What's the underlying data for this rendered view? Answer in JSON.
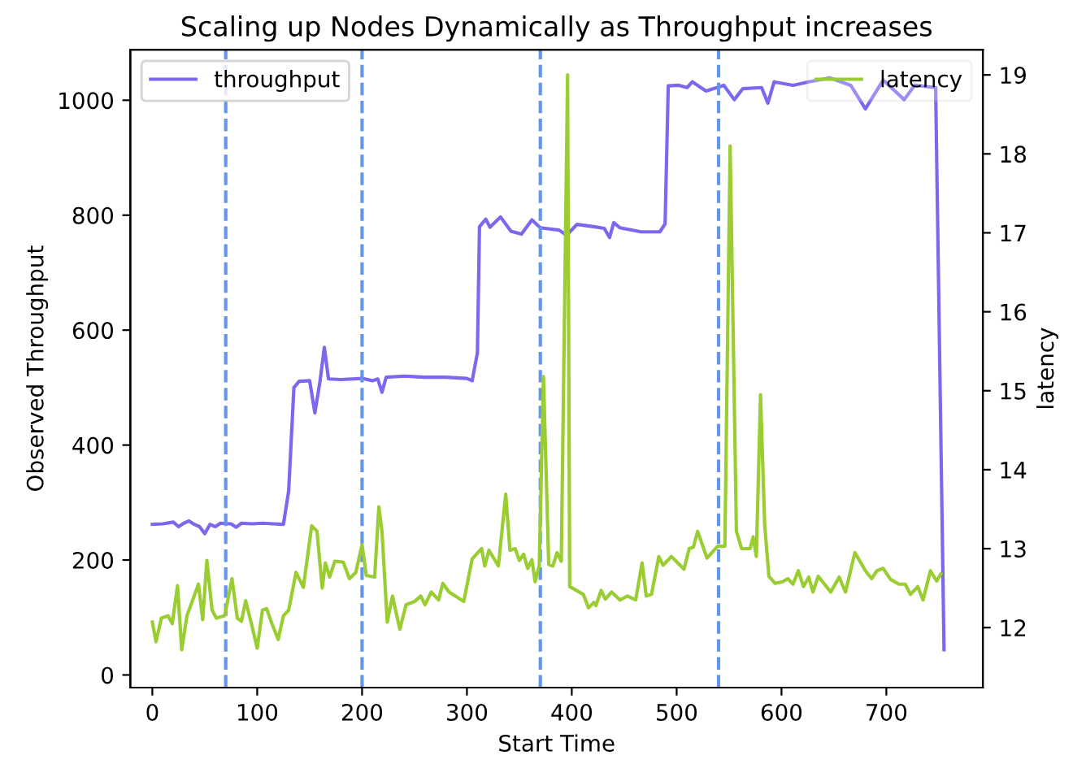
{
  "chart_data": {
    "type": "line",
    "title": "Scaling up Nodes Dynamically as Throughput increases",
    "xlabel": "Start Time",
    "ylabel": "Observed Throughput",
    "y2label": "latency",
    "xlim": [
      -21,
      792
    ],
    "xticks": [
      0,
      100,
      200,
      300,
      400,
      500,
      600,
      700
    ],
    "ylim": [
      -22,
      1088
    ],
    "yticks": [
      0,
      200,
      400,
      600,
      800,
      1000
    ],
    "y2lim": [
      11.24,
      19.32
    ],
    "y2ticks": [
      12,
      13,
      14,
      15,
      16,
      17,
      18,
      19
    ],
    "grid": false,
    "legend": "top",
    "line_style": "solid",
    "marker": "none",
    "ref_lines": [
      {
        "axis": "x",
        "value": 70,
        "color": "#6495ed",
        "line_style": "dashed"
      },
      {
        "axis": "x",
        "value": 200,
        "color": "#6495ed",
        "line_style": "dashed"
      },
      {
        "axis": "x",
        "value": 370,
        "color": "#6495ed",
        "line_style": "dashed"
      },
      {
        "axis": "x",
        "value": 540,
        "color": "#6495ed",
        "line_style": "dashed"
      }
    ],
    "series": [
      {
        "name": "throughput",
        "color": "#7b68ee",
        "axis": "y",
        "x": [
          0,
          10,
          20,
          25,
          30,
          35,
          40,
          45,
          50,
          55,
          60,
          65,
          75,
          80,
          85,
          95,
          105,
          115,
          125,
          130,
          135,
          140,
          150,
          155,
          160,
          164,
          168,
          180,
          200,
          210,
          215,
          219,
          223,
          240,
          260,
          280,
          300,
          305,
          310,
          312,
          318,
          322,
          332,
          342,
          352,
          362,
          370,
          388,
          395,
          405,
          421,
          431,
          436,
          440,
          446,
          466,
          484,
          489,
          492,
          502,
          510,
          515,
          528,
          545,
          555,
          563,
          581,
          587,
          593,
          611,
          626,
          646,
          666,
          680,
          697,
          717,
          727,
          747,
          755
        ],
        "values": [
          262,
          263,
          266,
          258,
          264,
          268,
          262,
          258,
          246,
          262,
          258,
          264,
          263,
          257,
          264,
          263,
          264,
          263,
          262,
          320,
          500,
          511,
          512,
          456,
          512,
          570,
          515,
          514,
          516,
          512,
          515,
          492,
          518,
          520,
          518,
          518,
          516,
          512,
          560,
          780,
          793,
          779,
          797,
          772,
          767,
          792,
          778,
          774,
          765,
          784,
          780,
          777,
          761,
          787,
          778,
          771,
          771,
          785,
          1025,
          1026,
          1022,
          1032,
          1016,
          1026,
          1001,
          1020,
          1022,
          995,
          1032,
          1026,
          1032,
          1039,
          1026,
          985,
          1035,
          1001,
          1026,
          1022,
          44
        ]
      },
      {
        "name": "latency",
        "color": "#9acd32",
        "axis": "y2",
        "x": [
          0,
          3.5,
          8.6,
          15,
          19,
          24,
          28,
          33,
          44,
          48,
          52,
          57,
          61,
          69,
          76,
          81,
          85,
          89,
          95,
          100,
          105,
          109,
          114,
          120,
          125,
          130,
          137,
          144,
          152,
          157,
          162,
          165,
          169,
          174,
          182,
          188,
          194,
          200,
          204,
          212,
          216,
          219,
          224,
          229,
          236,
          242,
          250,
          256,
          260,
          266,
          273,
          277,
          283,
          297,
          305,
          314,
          317,
          321,
          330,
          337,
          341,
          346,
          350,
          354,
          358,
          362,
          365,
          369,
          373,
          378,
          382,
          386,
          390,
          396,
          398,
          411,
          416,
          421,
          423,
          428,
          432,
          438,
          446,
          453,
          461,
          467,
          471,
          476,
          483,
          487,
          495,
          507,
          512,
          516,
          520,
          529,
          539,
          546,
          551,
          557,
          562,
          570,
          573,
          576,
          580,
          584,
          588,
          594,
          601,
          606,
          611,
          616,
          621,
          626,
          630,
          635,
          641,
          647,
          655,
          661,
          670,
          680,
          686,
          691,
          697,
          704,
          712,
          718,
          723,
          730,
          735,
          742,
          748,
          752
        ],
        "values": [
          12.07,
          11.82,
          12.12,
          12.15,
          12.05,
          12.53,
          11.72,
          12.15,
          12.55,
          12.1,
          12.85,
          12.22,
          12.12,
          12.15,
          12.62,
          12.12,
          12.08,
          12.34,
          12.02,
          11.74,
          12.22,
          12.24,
          12.05,
          11.85,
          12.15,
          12.22,
          12.7,
          12.51,
          13.29,
          13.22,
          12.5,
          12.82,
          12.64,
          12.84,
          12.83,
          12.62,
          12.7,
          13.05,
          12.66,
          12.64,
          13.53,
          13.22,
          12.07,
          12.4,
          11.98,
          12.29,
          12.33,
          12.4,
          12.29,
          12.45,
          12.35,
          12.56,
          12.45,
          12.33,
          12.87,
          13.0,
          12.78,
          12.98,
          12.78,
          13.69,
          12.98,
          13.0,
          12.85,
          12.93,
          12.75,
          12.86,
          12.58,
          12.78,
          15.18,
          12.8,
          12.78,
          12.95,
          12.84,
          19.0,
          12.52,
          12.42,
          12.25,
          12.32,
          12.28,
          12.47,
          12.36,
          12.45,
          12.35,
          12.4,
          12.35,
          12.82,
          12.4,
          12.42,
          12.9,
          12.79,
          12.9,
          12.74,
          13.0,
          13.02,
          13.22,
          12.88,
          13.03,
          13.03,
          18.1,
          13.22,
          13.0,
          13.0,
          13.15,
          12.9,
          14.95,
          13.29,
          12.65,
          12.56,
          12.58,
          12.62,
          12.55,
          12.72,
          12.52,
          12.64,
          12.45,
          12.65,
          12.55,
          12.45,
          12.64,
          12.45,
          12.95,
          12.72,
          12.62,
          12.72,
          12.75,
          12.61,
          12.55,
          12.55,
          12.42,
          12.52,
          12.35,
          12.72,
          12.59,
          12.68
        ]
      }
    ]
  }
}
